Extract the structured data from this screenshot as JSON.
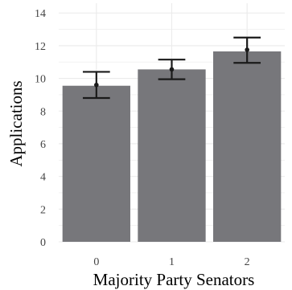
{
  "chart_data": {
    "type": "bar",
    "xlabel": "Majority Party Senators",
    "ylabel": "Applications",
    "categories": [
      "0",
      "1",
      "2"
    ],
    "values": [
      9.55,
      10.55,
      11.65
    ],
    "error_low": [
      8.8,
      9.95,
      10.95
    ],
    "error_high": [
      10.4,
      11.15,
      12.5
    ],
    "point_estimates": [
      9.6,
      10.55,
      11.75
    ],
    "ylim": [
      0,
      14.6
    ],
    "yticks": [
      0,
      2,
      4,
      6,
      8,
      10,
      12,
      14
    ],
    "grid": true,
    "bar_color": "#77777b",
    "error_color": "#1a1a1a",
    "grid_color": "#ebebeb"
  }
}
